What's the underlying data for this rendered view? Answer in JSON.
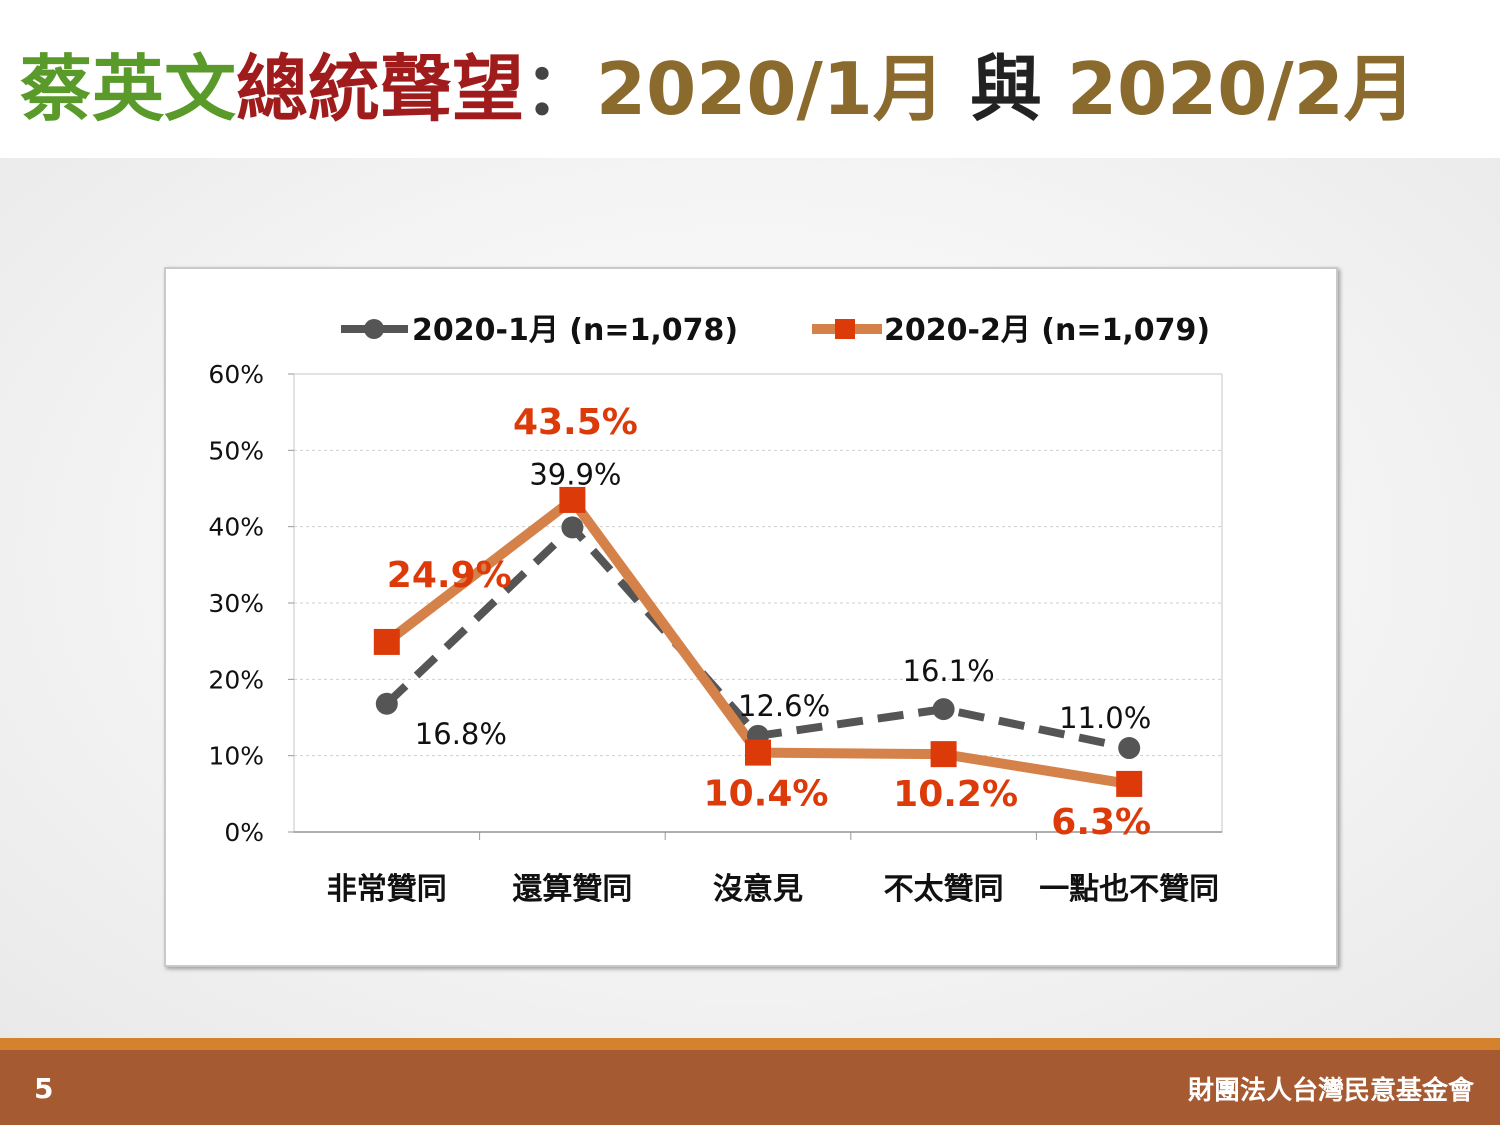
{
  "page": {
    "title_parts": [
      "蔡英文",
      "總統聲望",
      "：",
      "2020/1月",
      " 與 ",
      "2020/2月"
    ],
    "page_number": "5",
    "org_name": "財團法人台灣民意基金會"
  },
  "chart_data": {
    "type": "line",
    "categories": [
      "非常贊同",
      "還算贊同",
      "沒意見",
      "不太贊同",
      "一點也不贊同"
    ],
    "series": [
      {
        "name": "2020-1月  (n=1,078)",
        "values": [
          16.8,
          39.9,
          12.6,
          16.1,
          11.0
        ],
        "labels": [
          "16.8%",
          "39.9%",
          "12.6%",
          "16.1%",
          "11.0%"
        ],
        "color": "#555555",
        "line_style": "dashed",
        "marker": "circle"
      },
      {
        "name": "2020-2月  (n=1,079)",
        "values": [
          24.9,
          43.5,
          10.4,
          10.2,
          6.3
        ],
        "labels": [
          "24.9%",
          "43.5%",
          "10.4%",
          "10.2%",
          "6.3%"
        ],
        "color": "#d4824a",
        "marker_color": "#dd3a0a",
        "label_color": "#dd3a0a",
        "line_style": "solid",
        "marker": "square"
      }
    ],
    "y_ticks": [
      "0%",
      "10%",
      "20%",
      "30%",
      "40%",
      "50%",
      "60%"
    ],
    "ylim": [
      0,
      60
    ],
    "grid": true,
    "legend": "top"
  }
}
